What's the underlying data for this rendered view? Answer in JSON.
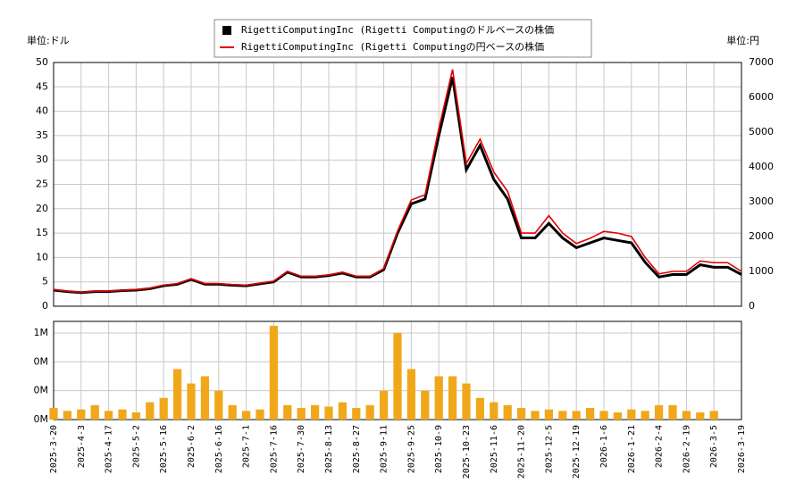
{
  "chart_data": [
    {
      "type": "line",
      "y_label": "単位:ドル",
      "y2_label": "単位:円",
      "grid": true,
      "legend": "top",
      "categories": [
        "2025-3-20",
        null,
        "2025-4-3",
        null,
        "2025-4-17",
        null,
        "2025-5-2",
        null,
        "2025-5-16",
        null,
        "2025-6-2",
        null,
        "2025-6-16",
        null,
        "2025-7-1",
        null,
        "2025-7-16",
        null,
        "2025-7-30",
        null,
        "2025-8-13",
        null,
        "2025-8-27",
        null,
        "2025-9-11",
        null,
        "2025-9-25",
        null,
        "2025-10-9",
        null,
        "2025-10-23",
        null,
        "2025-11-6",
        null,
        "2025-11-20",
        null,
        "2025-12-5",
        null,
        "2025-12-19",
        null,
        "2026-1-6",
        null,
        "2026-1-21",
        null,
        "2026-2-4",
        null,
        "2026-2-19",
        null,
        "2026-3-5",
        null,
        "2026-3-19"
      ],
      "ylim": [
        0,
        50
      ],
      "yticks": [
        0,
        5,
        10,
        15,
        20,
        25,
        30,
        35,
        40,
        45,
        50
      ],
      "y2lim": [
        0,
        7000
      ],
      "y2ticks": [
        0,
        1000,
        2000,
        3000,
        4000,
        5000,
        6000,
        7000
      ],
      "series": [
        {
          "name": "RigettiComputingInc (Rigetti Computingのドルベースの株価",
          "color": "#000000",
          "values": [
            3.3,
            3.0,
            2.8,
            3.0,
            3.0,
            3.2,
            3.3,
            3.6,
            4.2,
            4.5,
            5.5,
            4.5,
            4.5,
            4.3,
            4.2,
            4.6,
            5.0,
            7.0,
            6.0,
            6.0,
            6.3,
            6.8,
            6.0,
            6.0,
            7.5,
            15,
            21,
            22,
            35,
            47,
            28,
            33,
            26,
            22,
            14,
            14,
            17,
            14,
            12,
            13,
            14,
            13.5,
            13,
            9,
            6,
            6.5,
            6.5,
            8.5,
            8,
            8,
            6.5
          ]
        },
        {
          "name": "RigettiComputingInc (Rigetti Computingの円ベースの株価",
          "color": "#e00000",
          "axis": "y2",
          "values": [
            480,
            430,
            400,
            430,
            430,
            460,
            475,
            520,
            605,
            650,
            790,
            650,
            650,
            620,
            605,
            660,
            720,
            1000,
            860,
            860,
            900,
            980,
            860,
            860,
            1080,
            2160,
            3050,
            3200,
            5100,
            6800,
            4100,
            4800,
            3850,
            3300,
            2100,
            2100,
            2600,
            2100,
            1800,
            1950,
            2150,
            2100,
            2000,
            1400,
            930,
            1000,
            1000,
            1300,
            1250,
            1250,
            1000
          ]
        }
      ]
    },
    {
      "type": "bar",
      "color": "#f0a81a",
      "grid": true,
      "ylim": [
        0,
        0.68
      ],
      "yticks": [
        {
          "value": 0,
          "label": "0M"
        },
        {
          "value": 0.2,
          "label": "0M"
        },
        {
          "value": 0.4,
          "label": "0M"
        },
        {
          "value": 0.6,
          "label": "1M"
        }
      ],
      "values": [
        0.08,
        0.06,
        0.07,
        0.1,
        0.06,
        0.07,
        0.05,
        0.12,
        0.15,
        0.35,
        0.25,
        0.3,
        0.2,
        0.1,
        0.06,
        0.07,
        0.65,
        0.1,
        0.08,
        0.1,
        0.09,
        0.12,
        0.08,
        0.1,
        0.2,
        0.6,
        0.35,
        0.2,
        0.3,
        0.3,
        0.25,
        0.15,
        0.12,
        0.1,
        0.08,
        0.06,
        0.07,
        0.06,
        0.06,
        0.08,
        0.06,
        0.05,
        0.07,
        0.06,
        0.1,
        0.1,
        0.06,
        0.05,
        0.06
      ]
    }
  ]
}
